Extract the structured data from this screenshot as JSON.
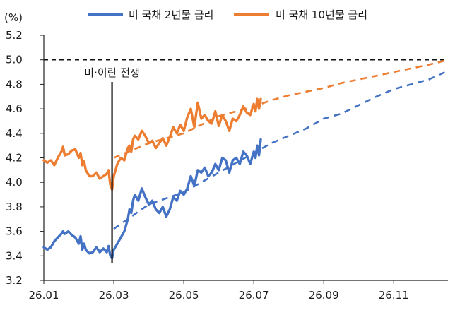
{
  "chart_data": {
    "type": "line",
    "title": "",
    "unit_label": "(%)",
    "xlabel": "",
    "ylabel": "",
    "ylim": [
      3.2,
      5.2
    ],
    "yticks": [
      "3.2",
      "3.4",
      "3.6",
      "3.8",
      "4.0",
      "4.2",
      "4.4",
      "4.6",
      "4.8",
      "5.0",
      "5.2"
    ],
    "xlim": [
      0,
      11.55
    ],
    "xticks": [
      {
        "label": "26.01",
        "x": 0
      },
      {
        "label": "26.03",
        "x": 2
      },
      {
        "label": "26.05",
        "x": 4
      },
      {
        "label": "26.07",
        "x": 6
      },
      {
        "label": "26.09",
        "x": 8
      },
      {
        "label": "26.11",
        "x": 10
      }
    ],
    "legend_position": "top",
    "grid": false,
    "reference_line": {
      "y": 5.0,
      "style": "dashed",
      "color": "#111111"
    },
    "event_marker": {
      "x": 1.95,
      "label": "미·이란 전쟁",
      "color": "#111111"
    },
    "series": [
      {
        "name": "미 국채 2년물 금리",
        "color": "#4472C4",
        "x": [
          0.0,
          0.1,
          0.2,
          0.3,
          0.4,
          0.5,
          0.55,
          0.6,
          0.7,
          0.8,
          0.9,
          1.0,
          1.05,
          1.1,
          1.15,
          1.2,
          1.3,
          1.4,
          1.5,
          1.6,
          1.7,
          1.8,
          1.85,
          1.9,
          1.95,
          2.0,
          2.1,
          2.2,
          2.3,
          2.4,
          2.45,
          2.5,
          2.55,
          2.6,
          2.7,
          2.8,
          2.9,
          3.0,
          3.1,
          3.2,
          3.3,
          3.4,
          3.5,
          3.6,
          3.7,
          3.8,
          3.9,
          4.0,
          4.1,
          4.2,
          4.3,
          4.4,
          4.5,
          4.6,
          4.7,
          4.8,
          4.9,
          5.0,
          5.1,
          5.2,
          5.3,
          5.4,
          5.5,
          5.6,
          5.7,
          5.8,
          5.9,
          6.0,
          6.05,
          6.1,
          6.15,
          6.2
        ],
        "values": [
          3.47,
          3.45,
          3.47,
          3.52,
          3.55,
          3.58,
          3.6,
          3.58,
          3.6,
          3.57,
          3.55,
          3.5,
          3.56,
          3.45,
          3.5,
          3.45,
          3.42,
          3.43,
          3.47,
          3.43,
          3.46,
          3.43,
          3.48,
          3.4,
          3.38,
          3.45,
          3.5,
          3.55,
          3.6,
          3.7,
          3.78,
          3.75,
          3.85,
          3.9,
          3.85,
          3.95,
          3.88,
          3.82,
          3.85,
          3.78,
          3.75,
          3.8,
          3.72,
          3.78,
          3.88,
          3.85,
          3.93,
          3.9,
          3.95,
          4.05,
          3.97,
          4.1,
          4.08,
          4.12,
          4.05,
          4.08,
          4.15,
          4.1,
          4.2,
          4.18,
          4.08,
          4.18,
          4.2,
          4.15,
          4.25,
          4.22,
          4.15,
          4.25,
          4.2,
          4.3,
          4.22,
          4.35
        ]
      },
      {
        "name": "미 국채 10년물 금리",
        "color": "#ED7D31",
        "x": [
          0.0,
          0.1,
          0.2,
          0.3,
          0.4,
          0.5,
          0.55,
          0.6,
          0.7,
          0.8,
          0.9,
          1.0,
          1.05,
          1.1,
          1.15,
          1.2,
          1.3,
          1.4,
          1.5,
          1.6,
          1.7,
          1.8,
          1.85,
          1.9,
          1.95,
          2.0,
          2.1,
          2.2,
          2.3,
          2.4,
          2.45,
          2.5,
          2.55,
          2.6,
          2.7,
          2.8,
          2.9,
          3.0,
          3.1,
          3.2,
          3.3,
          3.4,
          3.5,
          3.6,
          3.7,
          3.8,
          3.9,
          4.0,
          4.1,
          4.2,
          4.3,
          4.4,
          4.5,
          4.6,
          4.7,
          4.8,
          4.9,
          5.0,
          5.1,
          5.2,
          5.3,
          5.4,
          5.5,
          5.6,
          5.7,
          5.8,
          5.9,
          6.0,
          6.05,
          6.1,
          6.15,
          6.2
        ],
        "values": [
          4.18,
          4.16,
          4.18,
          4.14,
          4.2,
          4.25,
          4.29,
          4.22,
          4.23,
          4.26,
          4.27,
          4.2,
          4.24,
          4.14,
          4.17,
          4.1,
          4.05,
          4.05,
          4.08,
          4.03,
          4.05,
          4.07,
          4.1,
          3.98,
          3.94,
          4.05,
          4.15,
          4.2,
          4.18,
          4.28,
          4.3,
          4.25,
          4.35,
          4.38,
          4.35,
          4.42,
          4.38,
          4.32,
          4.34,
          4.28,
          4.32,
          4.36,
          4.3,
          4.37,
          4.45,
          4.4,
          4.47,
          4.42,
          4.53,
          4.6,
          4.45,
          4.65,
          4.52,
          4.55,
          4.5,
          4.48,
          4.58,
          4.46,
          4.55,
          4.5,
          4.42,
          4.52,
          4.5,
          4.55,
          4.62,
          4.57,
          4.55,
          4.64,
          4.58,
          4.68,
          4.6,
          4.68
        ]
      }
    ],
    "trend_lines": [
      {
        "series": "미 국채 2년물 금리",
        "style": "dashed",
        "x": [
          2.0,
          3.0,
          4.0,
          5.0,
          6.0,
          6.5,
          7.0,
          7.5,
          8.0,
          8.5,
          9.0,
          9.5,
          10.0,
          10.5,
          11.0,
          11.55
        ],
        "values": [
          3.62,
          3.82,
          3.92,
          4.08,
          4.24,
          4.32,
          4.38,
          4.44,
          4.52,
          4.56,
          4.63,
          4.7,
          4.76,
          4.8,
          4.84,
          4.91
        ]
      },
      {
        "series": "미 국채 10년물 금리",
        "style": "dashed",
        "x": [
          2.0,
          3.0,
          4.0,
          5.0,
          6.0,
          6.5,
          7.0,
          7.5,
          8.0,
          8.5,
          9.0,
          9.5,
          10.0,
          10.5,
          11.0,
          11.55
        ],
        "values": [
          4.2,
          4.32,
          4.4,
          4.54,
          4.62,
          4.67,
          4.71,
          4.74,
          4.77,
          4.81,
          4.84,
          4.87,
          4.9,
          4.93,
          4.96,
          5.0
        ]
      }
    ]
  }
}
